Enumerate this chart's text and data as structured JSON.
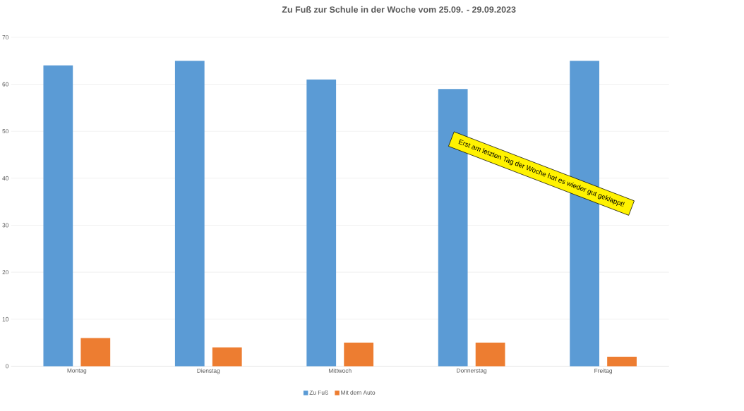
{
  "chart_data": {
    "type": "bar",
    "title": "Zu Fuß zur Schule in der Woche vom 25.09. - 29.09.2023",
    "categories": [
      "Montag",
      "Dienstag",
      "Mittwoch",
      "Donnerstag",
      "Freitag"
    ],
    "series": [
      {
        "name": "Zu Fuß",
        "color": "#5b9bd5",
        "values": [
          64,
          65,
          61,
          59,
          65
        ]
      },
      {
        "name": "Mit dem Auto",
        "color": "#ed7d31",
        "values": [
          6,
          4,
          5,
          5,
          2
        ]
      }
    ],
    "ylim": [
      0,
      70
    ],
    "yticks": [
      0,
      10,
      20,
      30,
      40,
      50,
      60,
      70
    ],
    "grid": "y",
    "legend": "bottom",
    "annotations": [
      "Erst am letzten Tag der Woche hat es wieder gut geklappt!"
    ]
  }
}
